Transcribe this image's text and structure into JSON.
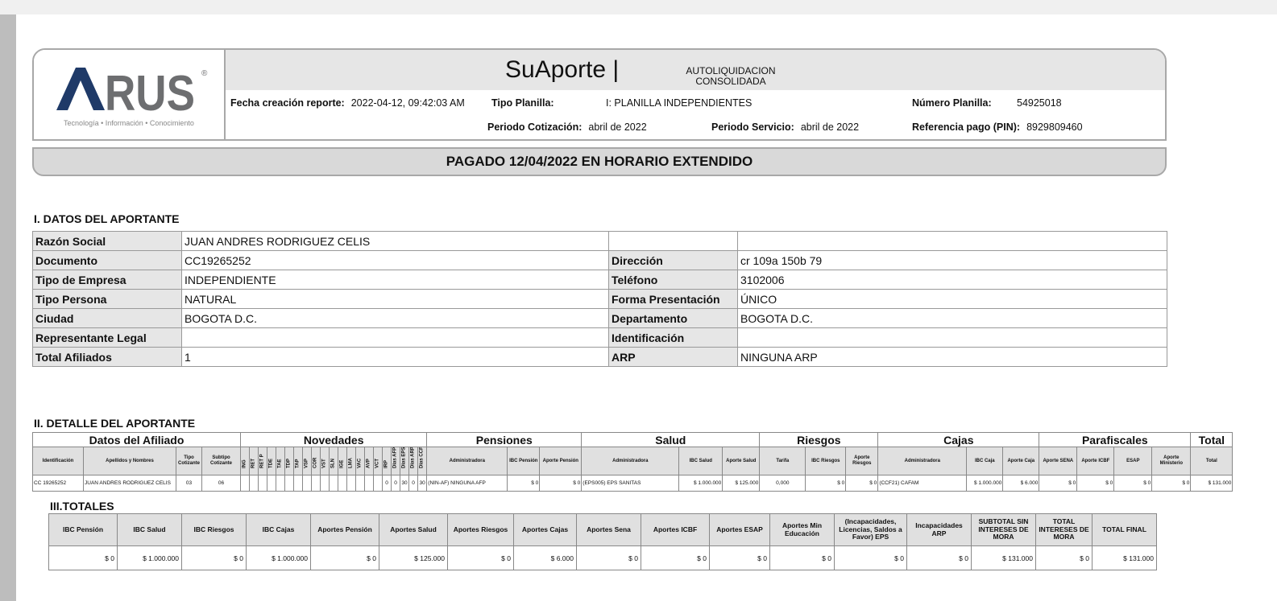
{
  "header": {
    "logo_text": "ARUS",
    "logo_tagline": "Tecnología • Información • Conocimiento",
    "title": "SuAporte |",
    "subtitle_line1": "AUTOLIQUIDACION",
    "subtitle_line2": "CONSOLIDADA",
    "fecha_label": "Fecha creación reporte:",
    "fecha_value": "2022-04-12, 09:42:03 AM",
    "tipo_planilla_label": "Tipo Planilla:",
    "tipo_planilla_value": "I: PLANILLA INDEPENDIENTES",
    "numero_planilla_label": "Número Planilla:",
    "numero_planilla_value": "54925018",
    "periodo_cotizacion_label": "Periodo Cotización:",
    "periodo_cotizacion_value": "abril de 2022",
    "periodo_servicio_label": "Periodo Servicio:",
    "periodo_servicio_value": "abril de 2022",
    "referencia_label": "Referencia pago (PIN):",
    "referencia_value": "8929809460"
  },
  "banner": "PAGADO 12/04/2022 EN HORARIO EXTENDIDO",
  "aportante": {
    "title": "I. DATOS DEL APORTANTE",
    "rows": [
      {
        "k1": "Razón Social",
        "v1": "JUAN ANDRES RODRIGUEZ CELIS"
      },
      {
        "k1": "Documento",
        "v1": "CC19265252",
        "k2": "Dirección",
        "v2": "cr 109a 150b 79"
      },
      {
        "k1": "Tipo de Empresa",
        "v1": "INDEPENDIENTE",
        "k2": "Teléfono",
        "v2": "3102006"
      },
      {
        "k1": "Tipo Persona",
        "v1": "NATURAL",
        "k2": "Forma Presentación",
        "v2": "ÚNICO"
      },
      {
        "k1": "Ciudad",
        "v1": "BOGOTA D.C.",
        "k2": "Departamento",
        "v2": "BOGOTA D.C."
      },
      {
        "k1": "Representante Legal",
        "v1": "",
        "k2": "Identificación",
        "v2": ""
      },
      {
        "k1": "Total Afiliados",
        "v1": "1",
        "k2": "ARP",
        "v2": "NINGUNA ARP"
      }
    ]
  },
  "detalle": {
    "title": "II. DETALLE DEL APORTANTE",
    "groups": [
      "Datos del Afiliado",
      "Novedades",
      "Pensiones",
      "Salud",
      "Riesgos",
      "Cajas",
      "Parafiscales",
      "Total"
    ],
    "headers_before": [
      "Identificación",
      "Apellidos y Nombres",
      "Tipo Cotizante",
      "Subtipo Cotizante"
    ],
    "novedades": [
      "ING",
      "RET",
      "RET P",
      "TDE",
      "TAE",
      "TDP",
      "TAP",
      "VSP",
      "COR",
      "VST",
      "SLN",
      "IGE",
      "LMA",
      "VAC",
      "AVP",
      "VCT",
      "IRP",
      "Dias AFP",
      "Dias EPS",
      "Dias ARP",
      "Dias CCF"
    ],
    "headers_after": [
      "Administradora",
      "IBC Pensión",
      "Aporte Pensión",
      "Administradora",
      "IBC Salud",
      "Aporte Salud",
      "Tarifa",
      "IBC Riesgos",
      "Aporte Riesgos",
      "Administradora",
      "IBC Caja",
      "Aporte Caja",
      "Aporte SENA",
      "Aporte ICBF",
      "ESAP",
      "Aporte Ministerio",
      "Total"
    ],
    "row_before": [
      "CC 19265252",
      "JUAN ANDRES RODRIGUEZ CELIS",
      "03",
      "06"
    ],
    "row_novedades": [
      "",
      "",
      "",
      "",
      "",
      "",
      "",
      "",
      "",
      "",
      "",
      "",
      "",
      "",
      "",
      "",
      "0",
      "0",
      "30",
      "0",
      "30"
    ],
    "row_after": [
      "(NIN-AF) NINGUNA AFP",
      "$ 0",
      "$ 0",
      "(EPS005) EPS SANITAS",
      "$ 1.000.000",
      "$ 125.000",
      "0,000",
      "$ 0",
      "$ 0",
      "(CCF21) CAFAM",
      "$ 1.000.000",
      "$ 6.000",
      "$ 0",
      "$ 0",
      "$ 0",
      "$ 0",
      "$ 131.000"
    ]
  },
  "totales": {
    "title": "III.TOTALES",
    "headers": [
      "IBC Pensión",
      "IBC Salud",
      "IBC Riesgos",
      "IBC Cajas",
      "Aportes Pensión",
      "Aportes Salud",
      "Aportes Riesgos",
      "Aportes Cajas",
      "Aportes Sena",
      "Aportes ICBF",
      "Aportes ESAP",
      "Aportes Min Educación",
      "(Incapacidades, Licencias, Saldos a Favor) EPS",
      "Incapacidades ARP",
      "SUBTOTAL SIN INTERESES DE MORA",
      "TOTAL INTERESES DE MORA",
      "TOTAL FINAL"
    ],
    "values": [
      "$ 0",
      "$ 1.000.000",
      "$ 0",
      "$ 1.000.000",
      "$ 0",
      "$ 125.000",
      "$ 0",
      "$ 6.000",
      "$ 0",
      "$ 0",
      "$ 0",
      "$ 0",
      "$ 0",
      "$ 0",
      "$ 131.000",
      "$ 0",
      "$ 131.000"
    ]
  },
  "colors": {
    "logo_blue": "#1f3a68",
    "logo_gray": "#6d6e70",
    "header_gray": "#e6e6e6"
  }
}
